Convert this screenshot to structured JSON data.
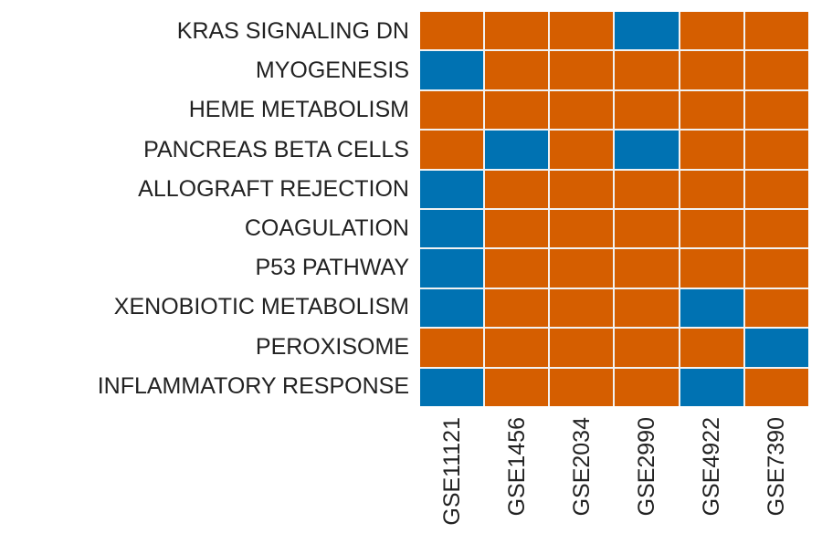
{
  "figure": {
    "background": "#ffffff",
    "text_color": "#222222",
    "grid_line_color": "#f2f2f2"
  },
  "chart_data": {
    "type": "heatmap",
    "title": "",
    "legend": "none",
    "rows": [
      "KRAS SIGNALING DN",
      "MYOGENESIS",
      "HEME METABOLISM",
      "PANCREAS BETA CELLS",
      "ALLOGRAFT REJECTION",
      "COAGULATION",
      "P53 PATHWAY",
      "XENOBIOTIC METABOLISM",
      "PEROXISOME",
      "INFLAMMATORY RESPONSE"
    ],
    "columns": [
      "GSE11121",
      "GSE1456",
      "GSE2034",
      "GSE2990",
      "GSE4922",
      "GSE7390"
    ],
    "values": [
      [
        0,
        0,
        0,
        1,
        0,
        0
      ],
      [
        1,
        0,
        0,
        0,
        0,
        0
      ],
      [
        0,
        0,
        0,
        0,
        0,
        0
      ],
      [
        0,
        1,
        0,
        1,
        0,
        0
      ],
      [
        1,
        0,
        0,
        0,
        0,
        0
      ],
      [
        1,
        0,
        0,
        0,
        0,
        0
      ],
      [
        1,
        0,
        0,
        0,
        0,
        0
      ],
      [
        1,
        0,
        0,
        0,
        1,
        0
      ],
      [
        0,
        0,
        0,
        0,
        0,
        1
      ],
      [
        1,
        0,
        0,
        0,
        1,
        0
      ]
    ],
    "color_map": {
      "0": "#D55E00",
      "1": "#0072B2"
    },
    "colors": {
      "orange": "#D55E00",
      "blue": "#0072B2"
    },
    "layout": {
      "x_tick_rotation_deg": 90,
      "grid": "on",
      "rows_count": 10,
      "columns_count": 6
    }
  }
}
